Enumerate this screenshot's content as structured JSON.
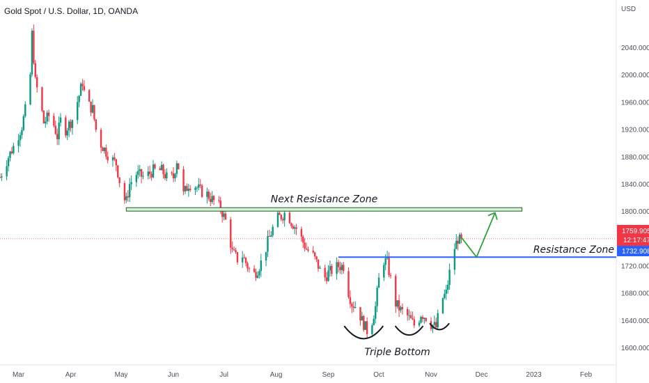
{
  "header": {
    "title": "Gold Spot / U.S. Dollar, 1D, OANDA"
  },
  "colors": {
    "up": "#089981",
    "down": "#f23645",
    "blue_line": "#2962ff",
    "green": "#2e9e3a",
    "price_tag": "#f23645",
    "level_tag": "#2962ff"
  },
  "chart_data": {
    "type": "candlestick",
    "title": "Gold Spot / U.S. Dollar, 1D, OANDA",
    "currency": "USD",
    "ylim": [
      1575,
      2110
    ],
    "yticks": [
      {
        "value": 2040,
        "label": "2040.000"
      },
      {
        "value": 2000,
        "label": "2000.000"
      },
      {
        "value": 1960,
        "label": "1960.000"
      },
      {
        "value": 1920,
        "label": "1920.000"
      },
      {
        "value": 1880,
        "label": "1880.000"
      },
      {
        "value": 1840,
        "label": "1840.000"
      },
      {
        "value": 1800,
        "label": "1800.000"
      },
      {
        "value": 1720,
        "label": "1720.000"
      },
      {
        "value": 1680,
        "label": "1680.000"
      },
      {
        "value": 1640,
        "label": "1640.000"
      },
      {
        "value": 1600,
        "label": "1600.000"
      }
    ],
    "xticks": [
      {
        "label": "Mar",
        "day": 0
      },
      {
        "label": "Apr",
        "day": 31
      },
      {
        "label": "May",
        "day": 61
      },
      {
        "label": "Jun",
        "day": 92
      },
      {
        "label": "Jul",
        "day": 122
      },
      {
        "label": "Aug",
        "day": 153
      },
      {
        "label": "Sep",
        "day": 184
      },
      {
        "label": "Oct",
        "day": 214
      },
      {
        "label": "Nov",
        "day": 245
      },
      {
        "label": "Dec",
        "day": 275
      },
      {
        "label": "2023",
        "day": 306
      },
      {
        "label": "Feb",
        "day": 337
      }
    ],
    "xlim_days": [
      -11,
      355
    ],
    "price_path": [
      [
        -11,
        1850
      ],
      [
        -6,
        1880
      ],
      [
        -2,
        1900
      ],
      [
        2,
        1925
      ],
      [
        5,
        1960
      ],
      [
        7,
        2000
      ],
      [
        8,
        2060
      ],
      [
        10,
        1990
      ],
      [
        13,
        1960
      ],
      [
        15,
        1930
      ],
      [
        18,
        1940
      ],
      [
        20,
        1935
      ],
      [
        23,
        1910
      ],
      [
        26,
        1945
      ],
      [
        28,
        1920
      ],
      [
        32,
        1935
      ],
      [
        36,
        1970
      ],
      [
        38,
        1990
      ],
      [
        40,
        1960
      ],
      [
        44,
        1950
      ],
      [
        47,
        1905
      ],
      [
        50,
        1895
      ],
      [
        54,
        1880
      ],
      [
        58,
        1870
      ],
      [
        60,
        1845
      ],
      [
        62,
        1820
      ],
      [
        64,
        1815
      ],
      [
        66,
        1840
      ],
      [
        70,
        1855
      ],
      [
        75,
        1850
      ],
      [
        80,
        1860
      ],
      [
        85,
        1860
      ],
      [
        88,
        1850
      ],
      [
        92,
        1850
      ],
      [
        94,
        1875
      ],
      [
        96,
        1855
      ],
      [
        98,
        1825
      ],
      [
        101,
        1840
      ],
      [
        104,
        1840
      ],
      [
        108,
        1830
      ],
      [
        112,
        1825
      ],
      [
        116,
        1815
      ],
      [
        120,
        1805
      ],
      [
        124,
        1780
      ],
      [
        127,
        1740
      ],
      [
        130,
        1730
      ],
      [
        133,
        1735
      ],
      [
        136,
        1720
      ],
      [
        139,
        1705
      ],
      [
        142,
        1715
      ],
      [
        145,
        1730
      ],
      [
        148,
        1755
      ],
      [
        151,
        1775
      ],
      [
        154,
        1790
      ],
      [
        157,
        1795
      ],
      [
        159,
        1800
      ],
      [
        162,
        1785
      ],
      [
        165,
        1775
      ],
      [
        168,
        1760
      ],
      [
        171,
        1745
      ],
      [
        175,
        1735
      ],
      [
        178,
        1720
      ],
      [
        181,
        1700
      ],
      [
        184,
        1710
      ],
      [
        187,
        1715
      ],
      [
        190,
        1720
      ],
      [
        193,
        1720
      ],
      [
        195,
        1690
      ],
      [
        198,
        1665
      ],
      [
        201,
        1660
      ],
      [
        204,
        1640
      ],
      [
        207,
        1625
      ],
      [
        209,
        1630
      ],
      [
        212,
        1660
      ],
      [
        214,
        1700
      ],
      [
        216,
        1730
      ],
      [
        219,
        1725
      ],
      [
        221,
        1700
      ],
      [
        224,
        1665
      ],
      [
        227,
        1655
      ],
      [
        230,
        1650
      ],
      [
        233,
        1640
      ],
      [
        236,
        1630
      ],
      [
        239,
        1650
      ],
      [
        242,
        1645
      ],
      [
        245,
        1635
      ],
      [
        248,
        1630
      ],
      [
        251,
        1670
      ],
      [
        254,
        1680
      ],
      [
        256,
        1710
      ],
      [
        258,
        1740
      ],
      [
        261,
        1760
      ],
      [
        263,
        1755
      ]
    ],
    "levels": [
      {
        "name": "Next Resistance Zone",
        "value": 1803,
        "from_day": 64,
        "to_day": 299
      },
      {
        "name": "Resistance Zone",
        "value": 1733,
        "from_day": 190,
        "to_day": 355
      }
    ],
    "annotations": [
      "Next Resistance Zone",
      "Resistance Zone",
      "Triple Bottom"
    ],
    "last_price": {
      "value": "1759.905",
      "countdown": "12:17:47"
    },
    "level_tag": "1732.908",
    "projection": [
      [
        263,
        1762
      ],
      [
        272,
        1733
      ],
      [
        283,
        1798
      ]
    ]
  }
}
